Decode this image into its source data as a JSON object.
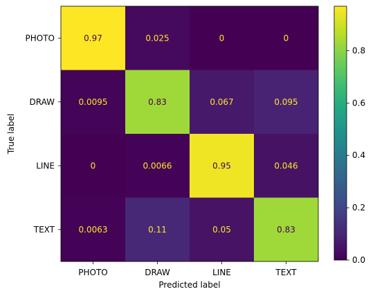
{
  "chart_data": {
    "type": "heatmap",
    "xlabel": "Predicted label",
    "ylabel": "True label",
    "x_categories": [
      "PHOTO",
      "DRAW",
      "LINE",
      "TEXT"
    ],
    "y_categories": [
      "PHOTO",
      "DRAW",
      "LINE",
      "TEXT"
    ],
    "values": [
      [
        0.97,
        0.025,
        0,
        0
      ],
      [
        0.0095,
        0.83,
        0.067,
        0.095
      ],
      [
        0,
        0.0066,
        0.95,
        0.046
      ],
      [
        0.0063,
        0.11,
        0.05,
        0.83
      ]
    ],
    "labels": [
      [
        "0.97",
        "0.025",
        "0",
        "0"
      ],
      [
        "0.0095",
        "0.83",
        "0.067",
        "0.095"
      ],
      [
        "0",
        "0.0066",
        "0.95",
        "0.046"
      ],
      [
        "0.0063",
        "0.11",
        "0.05",
        "0.83"
      ]
    ],
    "colormap": "viridis",
    "vmin": 0,
    "vmax": 0.97,
    "colorbar_ticks": [
      "0.0",
      "0.2",
      "0.4",
      "0.6",
      "0.8"
    ],
    "colorbar_tick_values": [
      0,
      0.2,
      0.4,
      0.6,
      0.8
    ],
    "text_color_dark_cells": "#fde725",
    "text_color_light_cells": "#440154",
    "grid": false
  }
}
